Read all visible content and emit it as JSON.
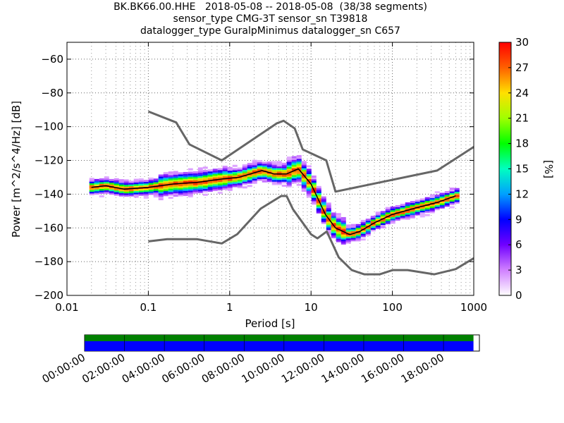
{
  "title": {
    "line1": "BK.BK66.00.HHE   2018-05-08 -- 2018-05-08  (38/38 segments)",
    "line2": "sensor_type CMG-3T sensor_sn T39818",
    "line3": "datalogger_type GuralpMinimus datalogger_sn C657"
  },
  "chart_data": {
    "type": "heatmap",
    "title": "BK.BK66.00.HHE   2018-05-08 -- 2018-05-08  (38/38 segments)",
    "xlabel": "Period [s]",
    "ylabel": "Power [m^2/s^4/Hz] [dB]",
    "xscale": "log",
    "xlim": [
      0.01,
      1000
    ],
    "ylim": [
      -200,
      -50
    ],
    "x_ticks": [
      0.01,
      0.1,
      1,
      10,
      100,
      1000
    ],
    "x_tick_labels": [
      "0.01",
      "0.1",
      "1",
      "10",
      "100",
      "1000"
    ],
    "y_ticks": [
      -200,
      -180,
      -160,
      -140,
      -120,
      -100,
      -80,
      -60
    ],
    "y_tick_labels": [
      "−200",
      "−180",
      "−160",
      "−140",
      "−120",
      "−100",
      "−80",
      "−60"
    ],
    "grid": true,
    "colorbar": {
      "label": "[%]",
      "range": [
        0,
        30
      ],
      "ticks": [
        0,
        3,
        6,
        9,
        12,
        15,
        18,
        21,
        24,
        27,
        30
      ],
      "tick_labels": [
        "0",
        "3",
        "6",
        "9",
        "12",
        "15",
        "18",
        "21",
        "24",
        "27",
        "30"
      ]
    },
    "median_curve": {
      "x": [
        0.02,
        0.03,
        0.05,
        0.1,
        0.2,
        0.4,
        0.8,
        1.3,
        2.5,
        3.5,
        5,
        7,
        10,
        15,
        20,
        30,
        40,
        60,
        100,
        200,
        350,
        600
      ],
      "y": [
        -136,
        -135,
        -137,
        -136,
        -134,
        -133,
        -131,
        -130,
        -126,
        -128,
        -128,
        -125,
        -134,
        -152,
        -160,
        -164,
        -162,
        -157,
        -152,
        -148,
        -145,
        -141
      ]
    },
    "nhnm": {
      "x": [
        0.1,
        0.22,
        0.32,
        0.8,
        3.8,
        4.6,
        6.3,
        7.9,
        15.4,
        20,
        354.8,
        1000
      ],
      "y": [
        -91,
        -97.5,
        -110.5,
        -120,
        -98,
        -96.5,
        -101,
        -113.5,
        -120,
        -138.5,
        -126,
        -112
      ]
    },
    "nlnm": {
      "x": [
        0.1,
        0.17,
        0.4,
        0.8,
        1.24,
        2.4,
        4.3,
        5,
        6,
        10,
        12,
        15.6,
        21.9,
        31.6,
        45,
        70,
        101,
        154,
        328,
        600,
        1000
      ],
      "y": [
        -168,
        -166.7,
        -166.7,
        -169.2,
        -163.7,
        -148.6,
        -141.1,
        -141.1,
        -149,
        -163.8,
        -166.2,
        -162.1,
        -177.5,
        -185,
        -187.5,
        -187.5,
        -185,
        -185,
        -187.5,
        -184.4,
        -178
      ]
    },
    "time_axis": {
      "tick_labels": [
        "00:00:00",
        "02:00:00",
        "04:00:00",
        "06:00:00",
        "08:00:00",
        "10:00:00",
        "12:00:00",
        "14:00:00",
        "16:00:00",
        "18:00:00"
      ],
      "data_coverage_end_fraction": 0.985,
      "segment_coverage_end_fraction": 0.985
    }
  },
  "colors": {
    "nm_line": "#666666",
    "median_line": "#000000",
    "coverage_data": "#008000",
    "coverage_segments": "#0000ff"
  }
}
